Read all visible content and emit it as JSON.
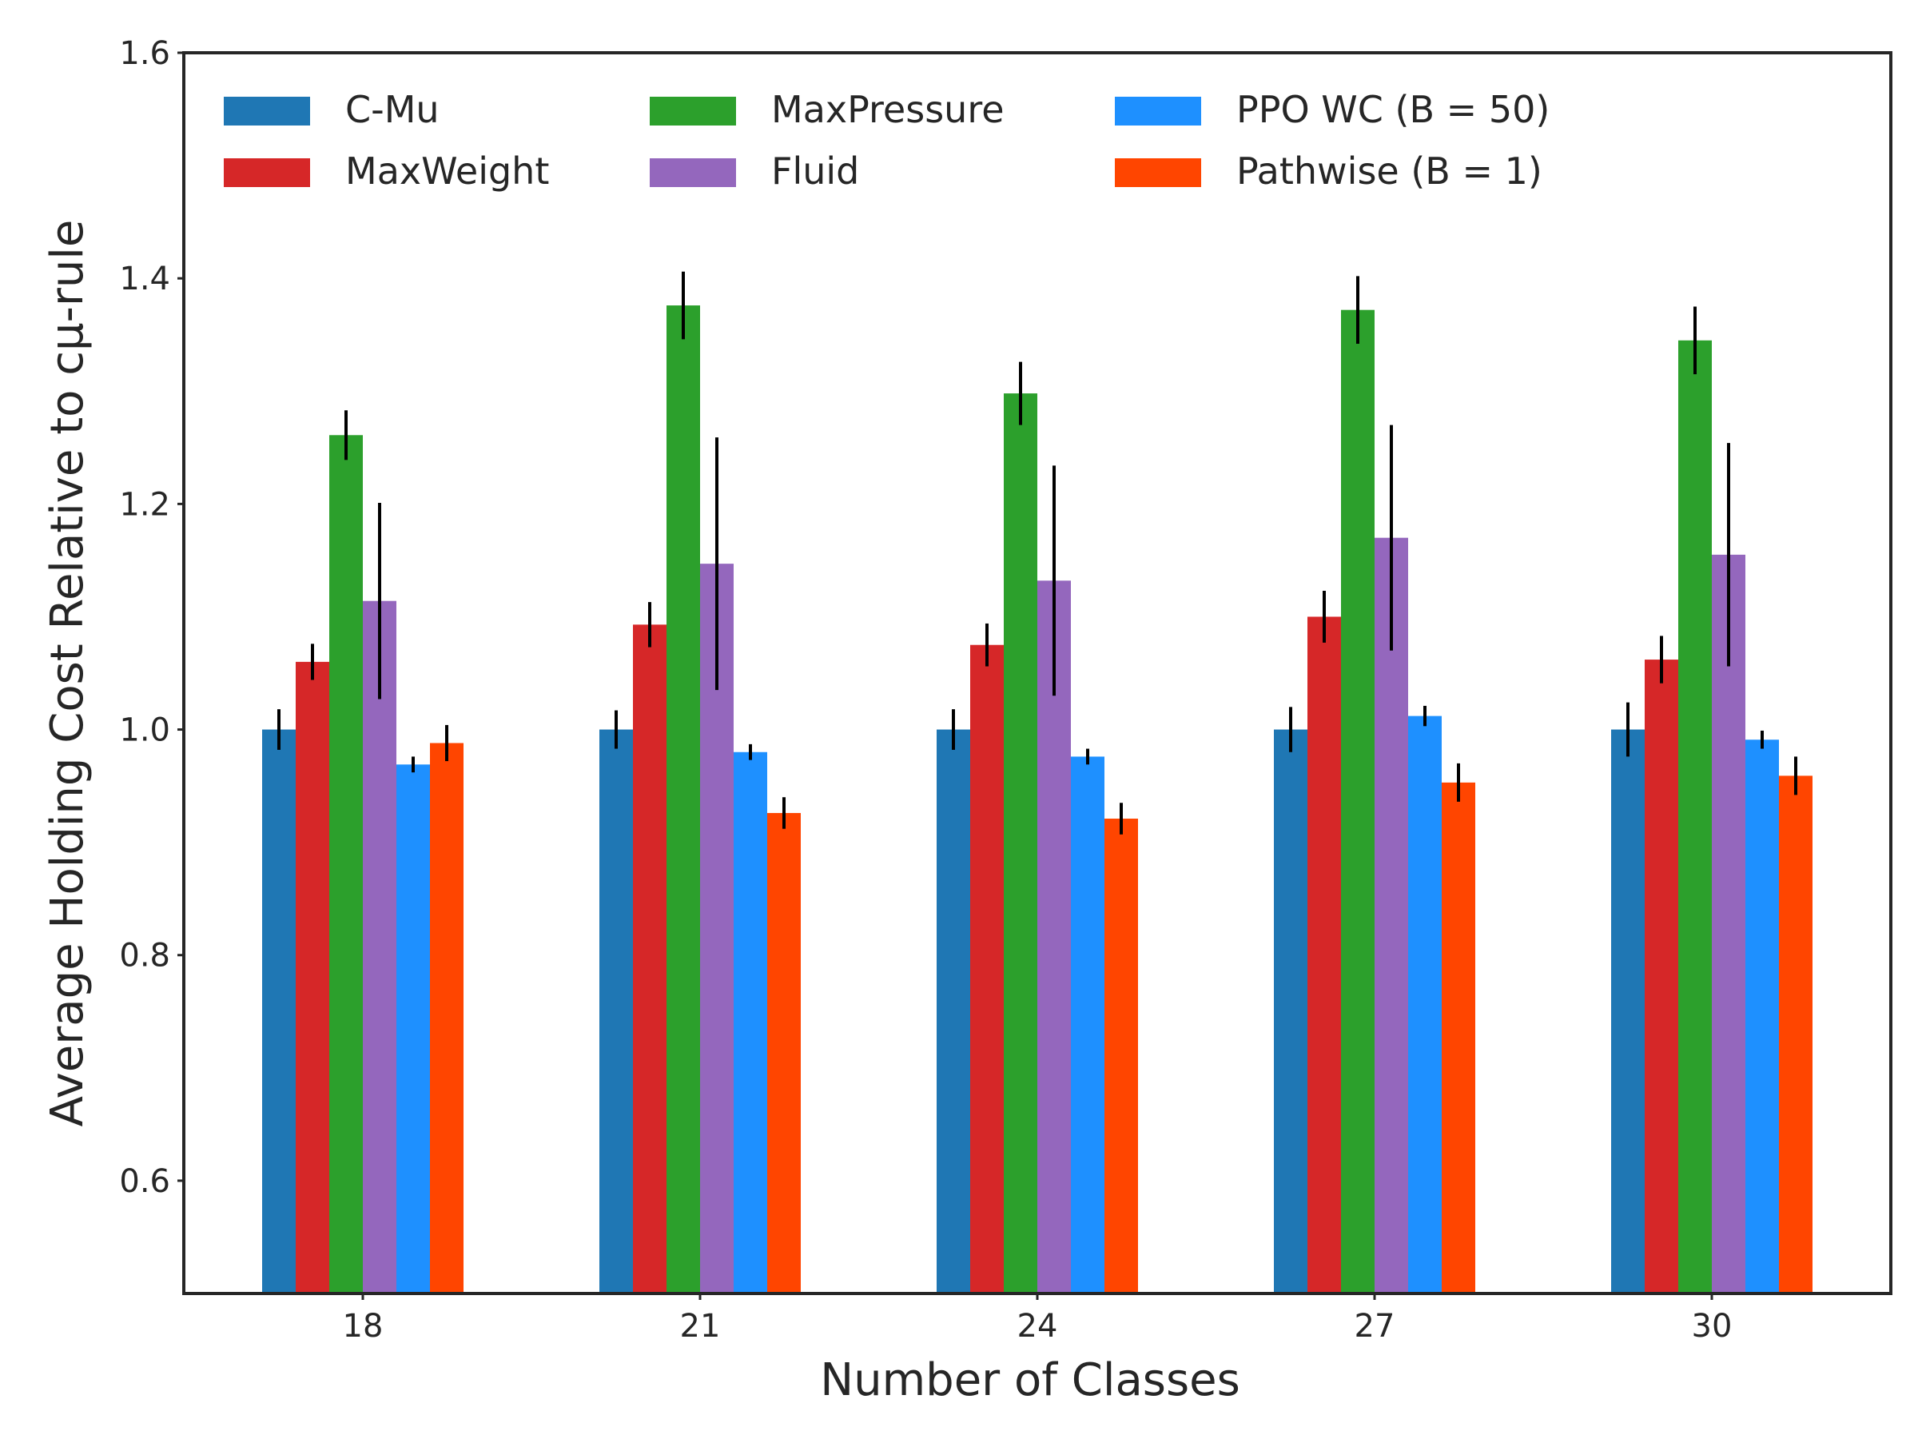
{
  "chart_data": {
    "type": "bar",
    "xlabel": "Number of Classes",
    "ylabel": "Average Holding Cost Relative to cμ-rule",
    "categories": [
      "18",
      "21",
      "24",
      "27",
      "30"
    ],
    "ylim": [
      0.5,
      1.6
    ],
    "yticks": [
      "0.6",
      "0.8",
      "1.0",
      "1.2",
      "1.4",
      "1.6"
    ],
    "grid": false,
    "legend_position": "top-left",
    "series": [
      {
        "name": "C-Mu",
        "color": "#1f77b4",
        "values": [
          1.0,
          1.0,
          1.0,
          1.0,
          1.0
        ],
        "err": [
          0.018,
          0.017,
          0.018,
          0.02,
          0.024
        ]
      },
      {
        "name": "MaxWeight",
        "color": "#d62728",
        "values": [
          1.06,
          1.093,
          1.075,
          1.1,
          1.062
        ],
        "err": [
          0.016,
          0.02,
          0.019,
          0.023,
          0.021
        ]
      },
      {
        "name": "MaxPressure",
        "color": "#2ca02c",
        "values": [
          1.261,
          1.376,
          1.298,
          1.372,
          1.345
        ],
        "err": [
          0.022,
          0.03,
          0.028,
          0.03,
          0.03
        ]
      },
      {
        "name": "Fluid",
        "color": "#9467bd",
        "values": [
          1.114,
          1.147,
          1.132,
          1.17,
          1.155
        ],
        "err": [
          0.087,
          0.112,
          0.102,
          0.1,
          0.099
        ]
      },
      {
        "name": "PPO WC (B = 50)",
        "color": "#1e90ff",
        "values": [
          0.969,
          0.98,
          0.976,
          1.012,
          0.991
        ],
        "err": [
          0.007,
          0.007,
          0.007,
          0.009,
          0.008
        ]
      },
      {
        "name": "Pathwise (B = 1)",
        "color": "#ff4500",
        "values": [
          0.988,
          0.926,
          0.921,
          0.953,
          0.959
        ],
        "err": [
          0.016,
          0.014,
          0.014,
          0.017,
          0.017
        ]
      }
    ]
  }
}
